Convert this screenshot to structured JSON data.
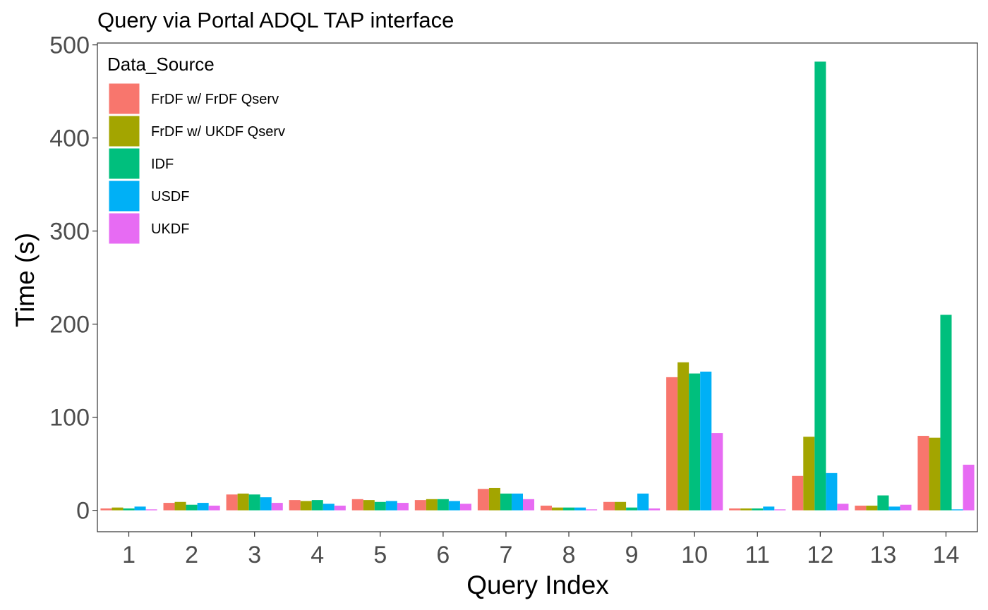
{
  "chart_data": {
    "type": "bar",
    "title": "Query via Portal ADQL TAP interface",
    "xlabel": "Query Index",
    "ylabel": "Time (s)",
    "ylim": [
      -23,
      502
    ],
    "yticks": [
      0,
      100,
      200,
      300,
      400,
      500
    ],
    "grid": false,
    "legend_position": "top-left",
    "legend_title": "Data_Source",
    "categories": [
      "1",
      "2",
      "3",
      "4",
      "5",
      "6",
      "7",
      "8",
      "9",
      "10",
      "11",
      "12",
      "13",
      "14"
    ],
    "series": [
      {
        "name": "FrDF w/ FrDF Qserv",
        "color": "#F8766D",
        "values": [
          2,
          8,
          17,
          11,
          12,
          11,
          23,
          5,
          9,
          143,
          2,
          37,
          5,
          80
        ]
      },
      {
        "name": "FrDF w/ UKDF Qserv",
        "color": "#A3A500",
        "values": [
          3,
          9,
          18,
          10,
          11,
          12,
          24,
          3,
          9,
          159,
          2,
          79,
          5,
          78
        ]
      },
      {
        "name": "IDF",
        "color": "#00BF7D",
        "values": [
          2,
          6,
          17,
          11,
          9,
          12,
          18,
          3,
          3,
          147,
          2,
          482,
          16,
          210
        ]
      },
      {
        "name": "USDF",
        "color": "#00B0F6",
        "values": [
          4,
          8,
          14,
          7,
          10,
          10,
          18,
          3,
          18,
          149,
          4,
          40,
          4,
          1
        ]
      },
      {
        "name": "UKDF",
        "color": "#E76BF3",
        "values": [
          1,
          5,
          8,
          5,
          8,
          7,
          12,
          1,
          2,
          83,
          1,
          7,
          6,
          49
        ]
      }
    ]
  }
}
